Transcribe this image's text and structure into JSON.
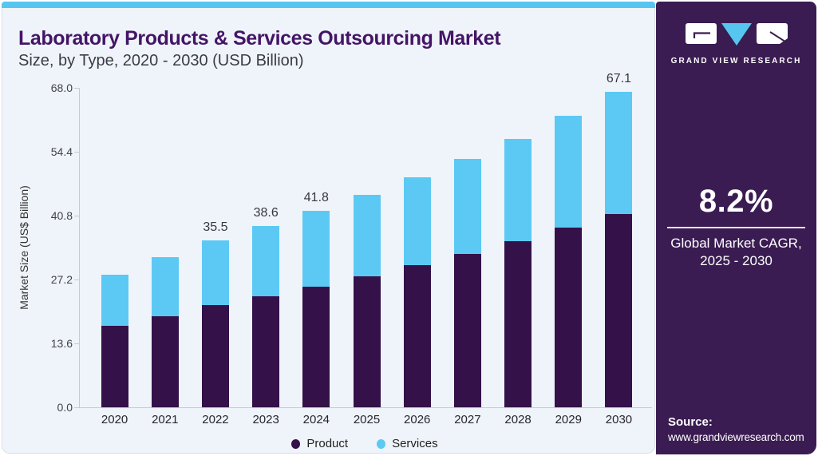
{
  "header": {
    "title": "Laboratory Products & Services Outsourcing Market",
    "subtitle": "Size, by Type, 2020 - 2030 (USD Billion)"
  },
  "branding": {
    "logo_wordmark": "GRAND VIEW RESEARCH",
    "panel_color": "#3A1C52",
    "accent_blue": "#56C6F1"
  },
  "cagr": {
    "value": "8.2%",
    "caption_line1": "Global Market CAGR,",
    "caption_line2": "2025 - 2030"
  },
  "source": {
    "label": "Source:",
    "url": "www.grandviewresearch.com"
  },
  "chart_data": {
    "type": "bar",
    "stacked": true,
    "title": "Laboratory Products & Services Outsourcing Market Size, by Type, 2020 - 2030 (USD Billion)",
    "xlabel": "",
    "ylabel": "Market Size (US$ Billion)",
    "ylim": [
      0,
      68
    ],
    "yticks": [
      0.0,
      13.6,
      27.2,
      40.8,
      54.4,
      68.0
    ],
    "ytick_labels": [
      "0.0",
      "13.6",
      "27.2",
      "40.8",
      "54.4",
      "68.0"
    ],
    "grid": false,
    "legend_position": "bottom",
    "categories": [
      "2020",
      "2021",
      "2022",
      "2023",
      "2024",
      "2025",
      "2026",
      "2027",
      "2028",
      "2029",
      "2030"
    ],
    "series": [
      {
        "name": "Product",
        "color": "#341148",
        "values": [
          17.3,
          19.3,
          21.7,
          23.7,
          25.6,
          27.9,
          30.2,
          32.7,
          35.4,
          38.2,
          41.2
        ]
      },
      {
        "name": "Services",
        "color": "#5BC9F4",
        "values": [
          11.0,
          12.6,
          13.8,
          14.9,
          16.2,
          17.3,
          18.7,
          20.2,
          21.8,
          23.8,
          25.9
        ]
      }
    ],
    "totals": [
      28.3,
      31.9,
      35.5,
      38.6,
      41.8,
      45.2,
      48.9,
      52.9,
      57.2,
      62.0,
      67.1
    ],
    "bar_labels": [
      "",
      "",
      "35.5",
      "38.6",
      "41.8",
      "",
      "",
      "",
      "",
      "",
      "67.1"
    ]
  }
}
